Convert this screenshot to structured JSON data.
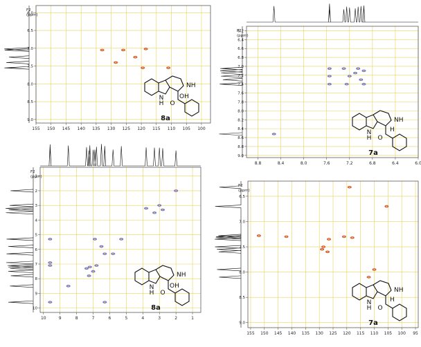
{
  "axis_title_lines": [
    "F2",
    "(ppm)"
  ],
  "colors": {
    "grid": "#e7d35a",
    "hsqc_peak": "#c2401f",
    "cosy_peak": "#4b5fd6",
    "highlight_h": "#e53ee0"
  },
  "labels": {
    "nh": "NH",
    "indole_nh": "N",
    "h": "H",
    "oh": "OH",
    "o": "O",
    "h_highlight": "H"
  },
  "chart_data": [
    {
      "id": "hsqc_8a",
      "type": "scatter",
      "compound": "8a",
      "x_ticks": [
        "155",
        "150",
        "145",
        "140",
        "135",
        "130",
        "125",
        "120",
        "115",
        "110",
        "105",
        "100"
      ],
      "y_ticks": [
        "6.0",
        "6.5",
        "7.0",
        "7.5",
        "8.0",
        "8.5",
        "9.0"
      ],
      "xlim": [
        155,
        97
      ],
      "ylim": [
        5.8,
        9.1
      ],
      "peaks": [
        [
          128.5,
          7.4
        ],
        [
          126.0,
          7.05
        ],
        [
          122.0,
          7.25
        ],
        [
          119.5,
          7.55
        ],
        [
          118.5,
          7.02
        ],
        [
          111.0,
          7.55
        ],
        [
          133.0,
          7.05
        ]
      ]
    },
    {
      "id": "cosy_7a",
      "type": "scatter",
      "compound": "7a",
      "x_ticks": [
        "8.8",
        "8.4",
        "8.0",
        "7.6",
        "7.2",
        "6.8",
        "6.4",
        "6.0"
      ],
      "y_ticks": [
        "6.2",
        "6.4",
        "6.6",
        "6.8",
        "7.0",
        "7.2",
        "7.4",
        "7.6",
        "7.8",
        "8.0",
        "8.2",
        "8.4",
        "8.6",
        "8.8",
        "9.0"
      ],
      "xlim": [
        9.0,
        6.0
      ],
      "ylim": [
        6.1,
        9.05
      ],
      "peaks": [
        [
          8.52,
          8.52
        ],
        [
          7.55,
          7.05
        ],
        [
          7.3,
          7.05
        ],
        [
          7.05,
          7.05
        ],
        [
          6.95,
          7.1
        ],
        [
          7.55,
          7.22
        ],
        [
          7.2,
          7.22
        ],
        [
          7.0,
          7.3
        ],
        [
          7.55,
          7.4
        ],
        [
          7.25,
          7.4
        ],
        [
          6.95,
          7.4
        ],
        [
          7.1,
          7.15
        ]
      ]
    },
    {
      "id": "cosy_8a",
      "type": "scatter",
      "compound": "8a",
      "x_ticks": [
        "10",
        "9",
        "8",
        "7",
        "6",
        "5",
        "4",
        "3",
        "2",
        "1"
      ],
      "y_ticks": [
        "1",
        "2",
        "3",
        "4",
        "5",
        "6",
        "7",
        "8",
        "9",
        "10"
      ],
      "xlim": [
        10.2,
        0.5
      ],
      "ylim": [
        0.4,
        10.3
      ],
      "peaks": [
        [
          9.6,
          9.6
        ],
        [
          8.5,
          8.5
        ],
        [
          7.2,
          7.2
        ],
        [
          7.4,
          7.3
        ],
        [
          7.0,
          7.5
        ],
        [
          7.25,
          7.8
        ],
        [
          6.8,
          7.1
        ],
        [
          6.5,
          5.8
        ],
        [
          6.3,
          6.3
        ],
        [
          5.8,
          6.3
        ],
        [
          5.3,
          5.3
        ],
        [
          6.9,
          5.3
        ],
        [
          9.6,
          5.3
        ],
        [
          9.6,
          6.9
        ],
        [
          9.6,
          7.1
        ],
        [
          3.8,
          3.2
        ],
        [
          3.3,
          3.5
        ],
        [
          3.0,
          3.0
        ],
        [
          2.8,
          3.3
        ],
        [
          6.3,
          9.6
        ],
        [
          2.0,
          2.0
        ]
      ]
    },
    {
      "id": "hsqc_7a",
      "type": "scatter",
      "compound": "7a",
      "x_ticks": [
        "155",
        "150",
        "145",
        "140",
        "135",
        "130",
        "125",
        "120",
        "115",
        "110",
        "105",
        "100",
        "95"
      ],
      "y_ticks": [
        "6.5",
        "7.0",
        "7.5",
        "8.0",
        "8.5",
        "9.0"
      ],
      "xlim": [
        156,
        94
      ],
      "ylim": [
        6.2,
        9.1
      ],
      "peaks": [
        [
          119.0,
          6.32
        ],
        [
          105.5,
          6.7
        ],
        [
          118.0,
          7.32
        ],
        [
          121.0,
          7.3
        ],
        [
          126.5,
          7.35
        ],
        [
          128.5,
          7.5
        ],
        [
          129.0,
          7.55
        ],
        [
          127.0,
          7.6
        ],
        [
          110.0,
          7.95
        ],
        [
          112.0,
          8.1
        ],
        [
          152.0,
          7.28
        ],
        [
          142.0,
          7.3
        ]
      ]
    }
  ]
}
